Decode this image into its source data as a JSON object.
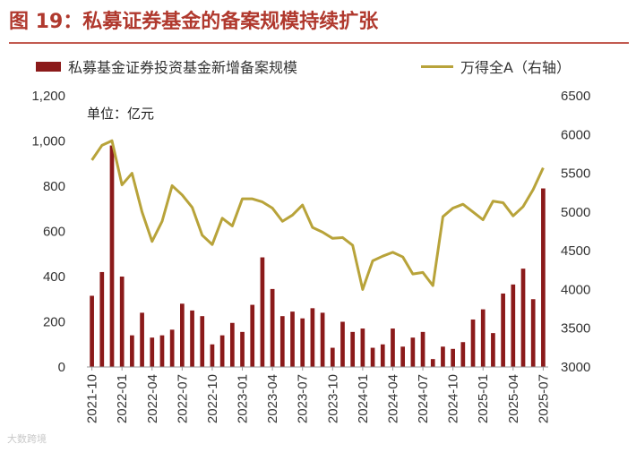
{
  "figure": {
    "title": "图 19：私募证券基金的备案规模持续扩张",
    "unit_label": "单位：亿元",
    "watermark": "大数跨境"
  },
  "colors": {
    "title": "#b0392e",
    "bar": "#8b1a1a",
    "line": "#b8a33a"
  },
  "chart_data": {
    "type": "bar",
    "x": [
      "2021-10",
      "2021-11",
      "2021-12",
      "2022-01",
      "2022-02",
      "2022-03",
      "2022-04",
      "2022-05",
      "2022-06",
      "2022-07",
      "2022-08",
      "2022-09",
      "2022-10",
      "2022-11",
      "2022-12",
      "2023-01",
      "2023-02",
      "2023-03",
      "2023-04",
      "2023-05",
      "2023-06",
      "2023-07",
      "2023-08",
      "2023-09",
      "2023-10",
      "2023-11",
      "2023-12",
      "2024-01",
      "2024-02",
      "2024-03",
      "2024-04",
      "2024-05",
      "2024-06",
      "2024-07",
      "2024-08",
      "2024-09",
      "2024-10",
      "2024-11",
      "2024-12",
      "2025-01",
      "2025-02",
      "2025-03",
      "2025-04",
      "2025-05",
      "2025-06",
      "2025-07"
    ],
    "x_tick_labels": [
      "2021-10",
      "2022-01",
      "2022-04",
      "2022-07",
      "2022-10",
      "2023-01",
      "2023-04",
      "2023-07",
      "2023-10",
      "2024-01",
      "2024-04",
      "2024-07",
      "2024-10",
      "2025-01",
      "2025-04",
      "2025-07"
    ],
    "series": [
      {
        "name": "私募基金证券投资基金新增备案规模",
        "type": "bar",
        "axis": "left",
        "values": [
          315,
          420,
          980,
          400,
          140,
          240,
          130,
          140,
          165,
          280,
          250,
          225,
          100,
          140,
          195,
          155,
          275,
          485,
          345,
          225,
          245,
          215,
          260,
          240,
          85,
          200,
          155,
          170,
          85,
          100,
          170,
          90,
          130,
          155,
          35,
          90,
          80,
          110,
          210,
          255,
          150,
          325,
          365,
          435,
          300,
          790
        ]
      },
      {
        "name": "万得全A（右轴）",
        "type": "line",
        "axis": "right",
        "values": [
          5670,
          5860,
          5920,
          5350,
          5500,
          5000,
          4620,
          4880,
          5340,
          5220,
          5060,
          4700,
          4580,
          4920,
          4820,
          5170,
          5170,
          5130,
          5050,
          4880,
          4960,
          5090,
          4800,
          4740,
          4660,
          4670,
          4570,
          4000,
          4370,
          4430,
          4480,
          4420,
          4200,
          4220,
          4050,
          4940,
          5050,
          5100,
          5000,
          4900,
          5140,
          5120,
          4950,
          5070,
          5290,
          5570
        ]
      }
    ],
    "y_left": {
      "min": 0,
      "max": 1200,
      "ticks": [
        0,
        200,
        400,
        600,
        800,
        1000,
        1200
      ],
      "tick_labels": [
        "0",
        "200",
        "400",
        "600",
        "800",
        "1,000",
        "1,200"
      ]
    },
    "y_right": {
      "min": 3000,
      "max": 6500,
      "ticks": [
        3000,
        3500,
        4000,
        4500,
        5000,
        5500,
        6000,
        6500
      ],
      "tick_labels": [
        "3000",
        "3500",
        "4000",
        "4500",
        "5000",
        "5500",
        "6000",
        "6500"
      ]
    },
    "legend_position": "top",
    "grid": false
  }
}
